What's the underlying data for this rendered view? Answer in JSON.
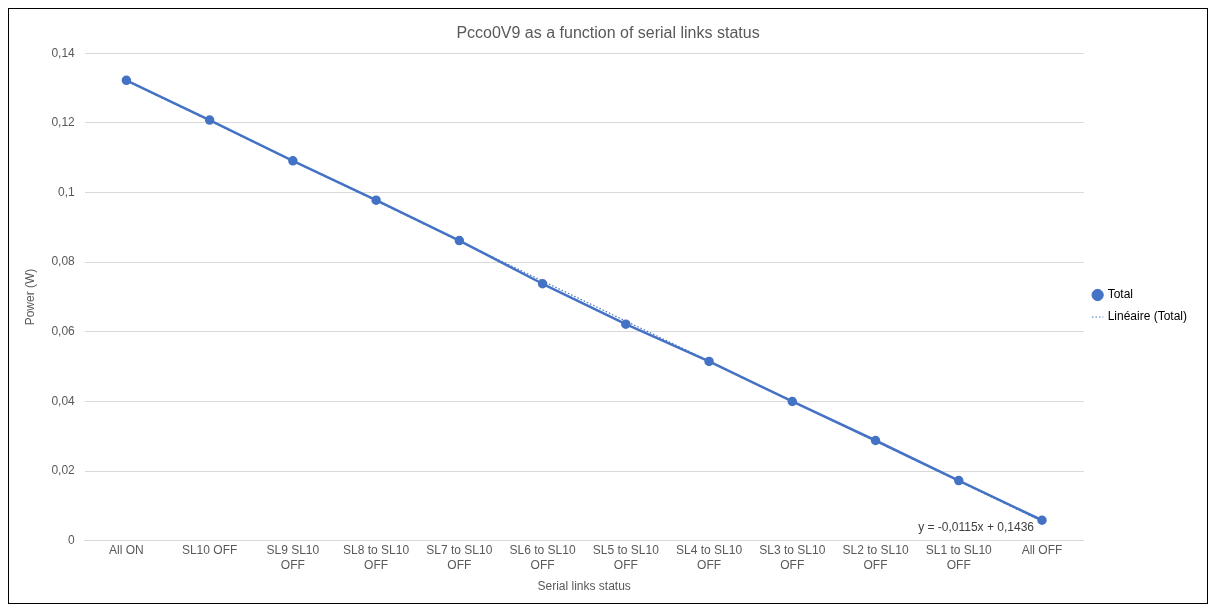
{
  "chart_data": {
    "type": "line",
    "title": "Pcco0V9 as a function of serial links status",
    "xlabel": "Serial links status",
    "ylabel": "Power (W)",
    "categories": [
      "All ON",
      "SL10 OFF",
      "SL9 SL10 OFF",
      "SL8 to SL10 OFF",
      "SL7 to SL10 OFF",
      "SL6 to SL10 OFF",
      "SL5 to SL10 OFF",
      "SL4 to SL10 OFF",
      "SL3 to SL10 OFF",
      "SL2 to SL10 OFF",
      "SL1 to SL10 OFF",
      "All OFF"
    ],
    "series": [
      {
        "name": "Total",
        "color": "#4472c4",
        "marker": "circle",
        "line_style": "solid",
        "values": [
          0.1322,
          0.1208,
          0.1091,
          0.0978,
          0.0862,
          0.0738,
          0.0622,
          0.0515,
          0.04,
          0.0288,
          0.0173,
          0.0059
        ]
      },
      {
        "name": "Linéaire (Total)",
        "type": "line",
        "color": "#4472c4",
        "marker": "none",
        "line_style": "dotted",
        "x": [
          "All ON",
          "All OFF"
        ],
        "values": [
          0.1321,
          0.0056
        ]
      }
    ],
    "ylim": [
      0,
      0.14
    ],
    "yticks": [
      0,
      {
        "value": 0.02,
        "label": "0,02"
      },
      {
        "value": 0.04,
        "label": "0,04"
      },
      {
        "value": 0.06,
        "label": "0,06"
      },
      {
        "value": 0.08,
        "label": "0,08"
      },
      {
        "value": 0.1,
        "label": "0,1"
      },
      {
        "value": 0.12,
        "label": "0,12"
      },
      {
        "value": 0.14,
        "label": "0,14"
      }
    ],
    "grid": "y",
    "legend": "right",
    "annotations": [
      {
        "text": "y = -0,0115x + 0,1436",
        "x": "All OFF",
        "y": 0.0059
      }
    ]
  }
}
